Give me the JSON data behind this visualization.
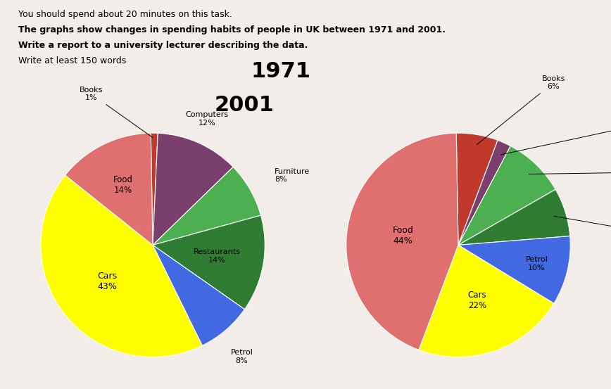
{
  "header_line1": "You should spend about 20 minutes on this task.",
  "header_line2": "The graphs show changes in spending habits of people in UK between 1971 and 2001.",
  "header_line3": "Write a report to a university lecturer describing the data.",
  "header_line4": "Write at least 150 words",
  "chart2001": {
    "title": "2001",
    "labels": [
      "Books",
      "Computers",
      "Furniture",
      "Restaurants",
      "Petrol",
      "Cars",
      "Food"
    ],
    "values": [
      1,
      12,
      8,
      14,
      8,
      43,
      14
    ],
    "colors": [
      "#c0392b",
      "#7b3f6e",
      "#4caf50",
      "#2e7d32",
      "#4169e1",
      "#ffff00",
      "#e07070"
    ],
    "startangle": 91
  },
  "chart1971": {
    "title": "1971",
    "labels": [
      "Books",
      "Computers",
      "Furniture",
      "Restaurants",
      "Petrol",
      "Cars",
      "Food"
    ],
    "values": [
      6,
      2,
      9,
      7,
      10,
      22,
      44
    ],
    "colors": [
      "#c0392b",
      "#7b3f6e",
      "#4caf50",
      "#2e7d32",
      "#4169e1",
      "#ffff00",
      "#e07070"
    ],
    "startangle": 91
  },
  "bg_color": "#f2ede8"
}
